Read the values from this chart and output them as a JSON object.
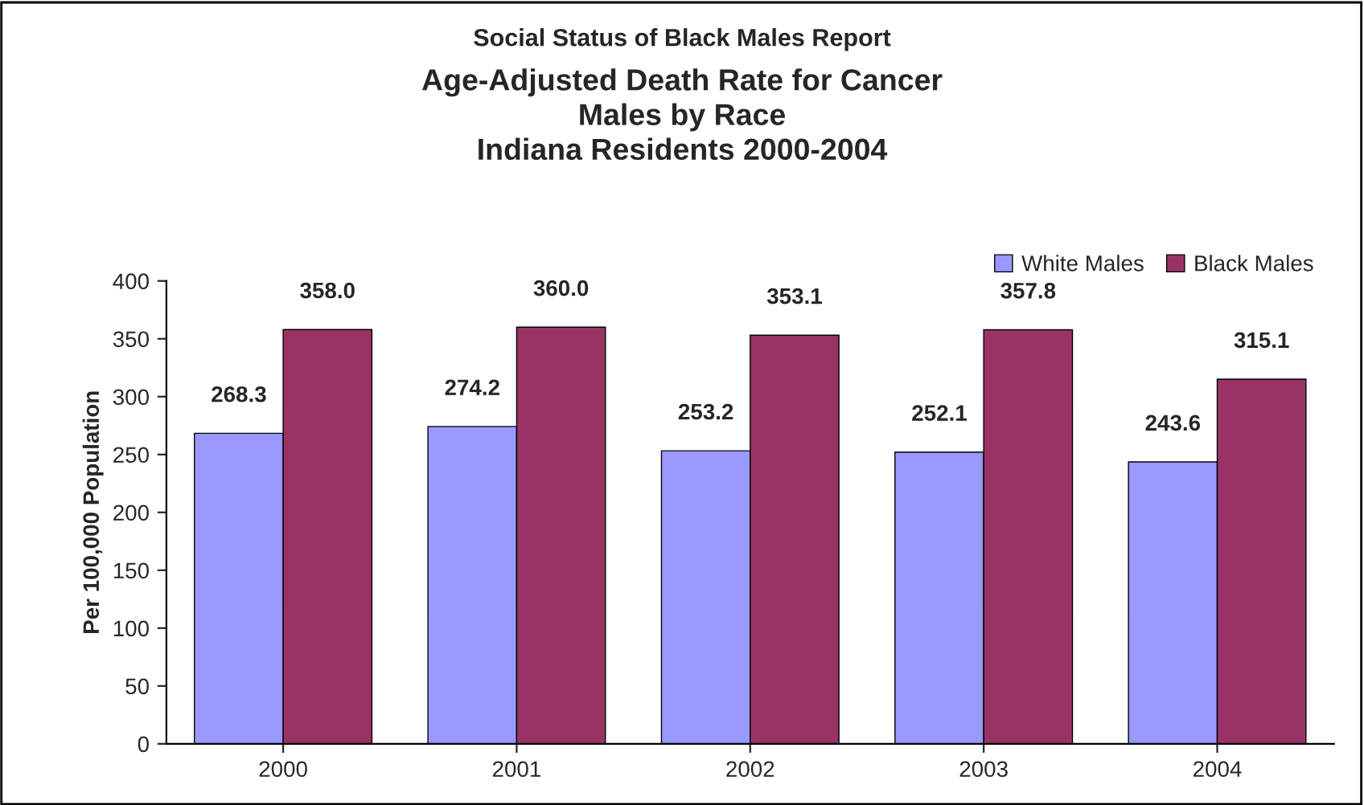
{
  "chart_data": {
    "type": "bar",
    "title": "Social Status of Black Males Report",
    "subtitle": "Age-Adjusted Death Rate for Cancer\nMales by Race\nIndiana Residents 2000-2004",
    "ylabel": "Per 100,000 Population",
    "categories": [
      "2000",
      "2001",
      "2002",
      "2003",
      "2004"
    ],
    "series": [
      {
        "name": "White Males",
        "color": "#9999ff",
        "values": [
          268.3,
          274.2,
          253.2,
          252.1,
          243.6
        ],
        "value_labels": [
          "268.3",
          "274.2",
          "253.2",
          "252.1",
          "243.6"
        ]
      },
      {
        "name": "Black Males",
        "color": "#993366",
        "values": [
          358.0,
          360.0,
          353.1,
          357.8,
          315.1
        ],
        "value_labels": [
          "358.0",
          "360.0",
          "353.1",
          "357.8",
          "315.1"
        ]
      }
    ],
    "ylim": [
      0,
      400
    ],
    "yticks": [
      0,
      50,
      100,
      150,
      200,
      250,
      300,
      350,
      400
    ],
    "grid": false,
    "legend": "top right"
  }
}
